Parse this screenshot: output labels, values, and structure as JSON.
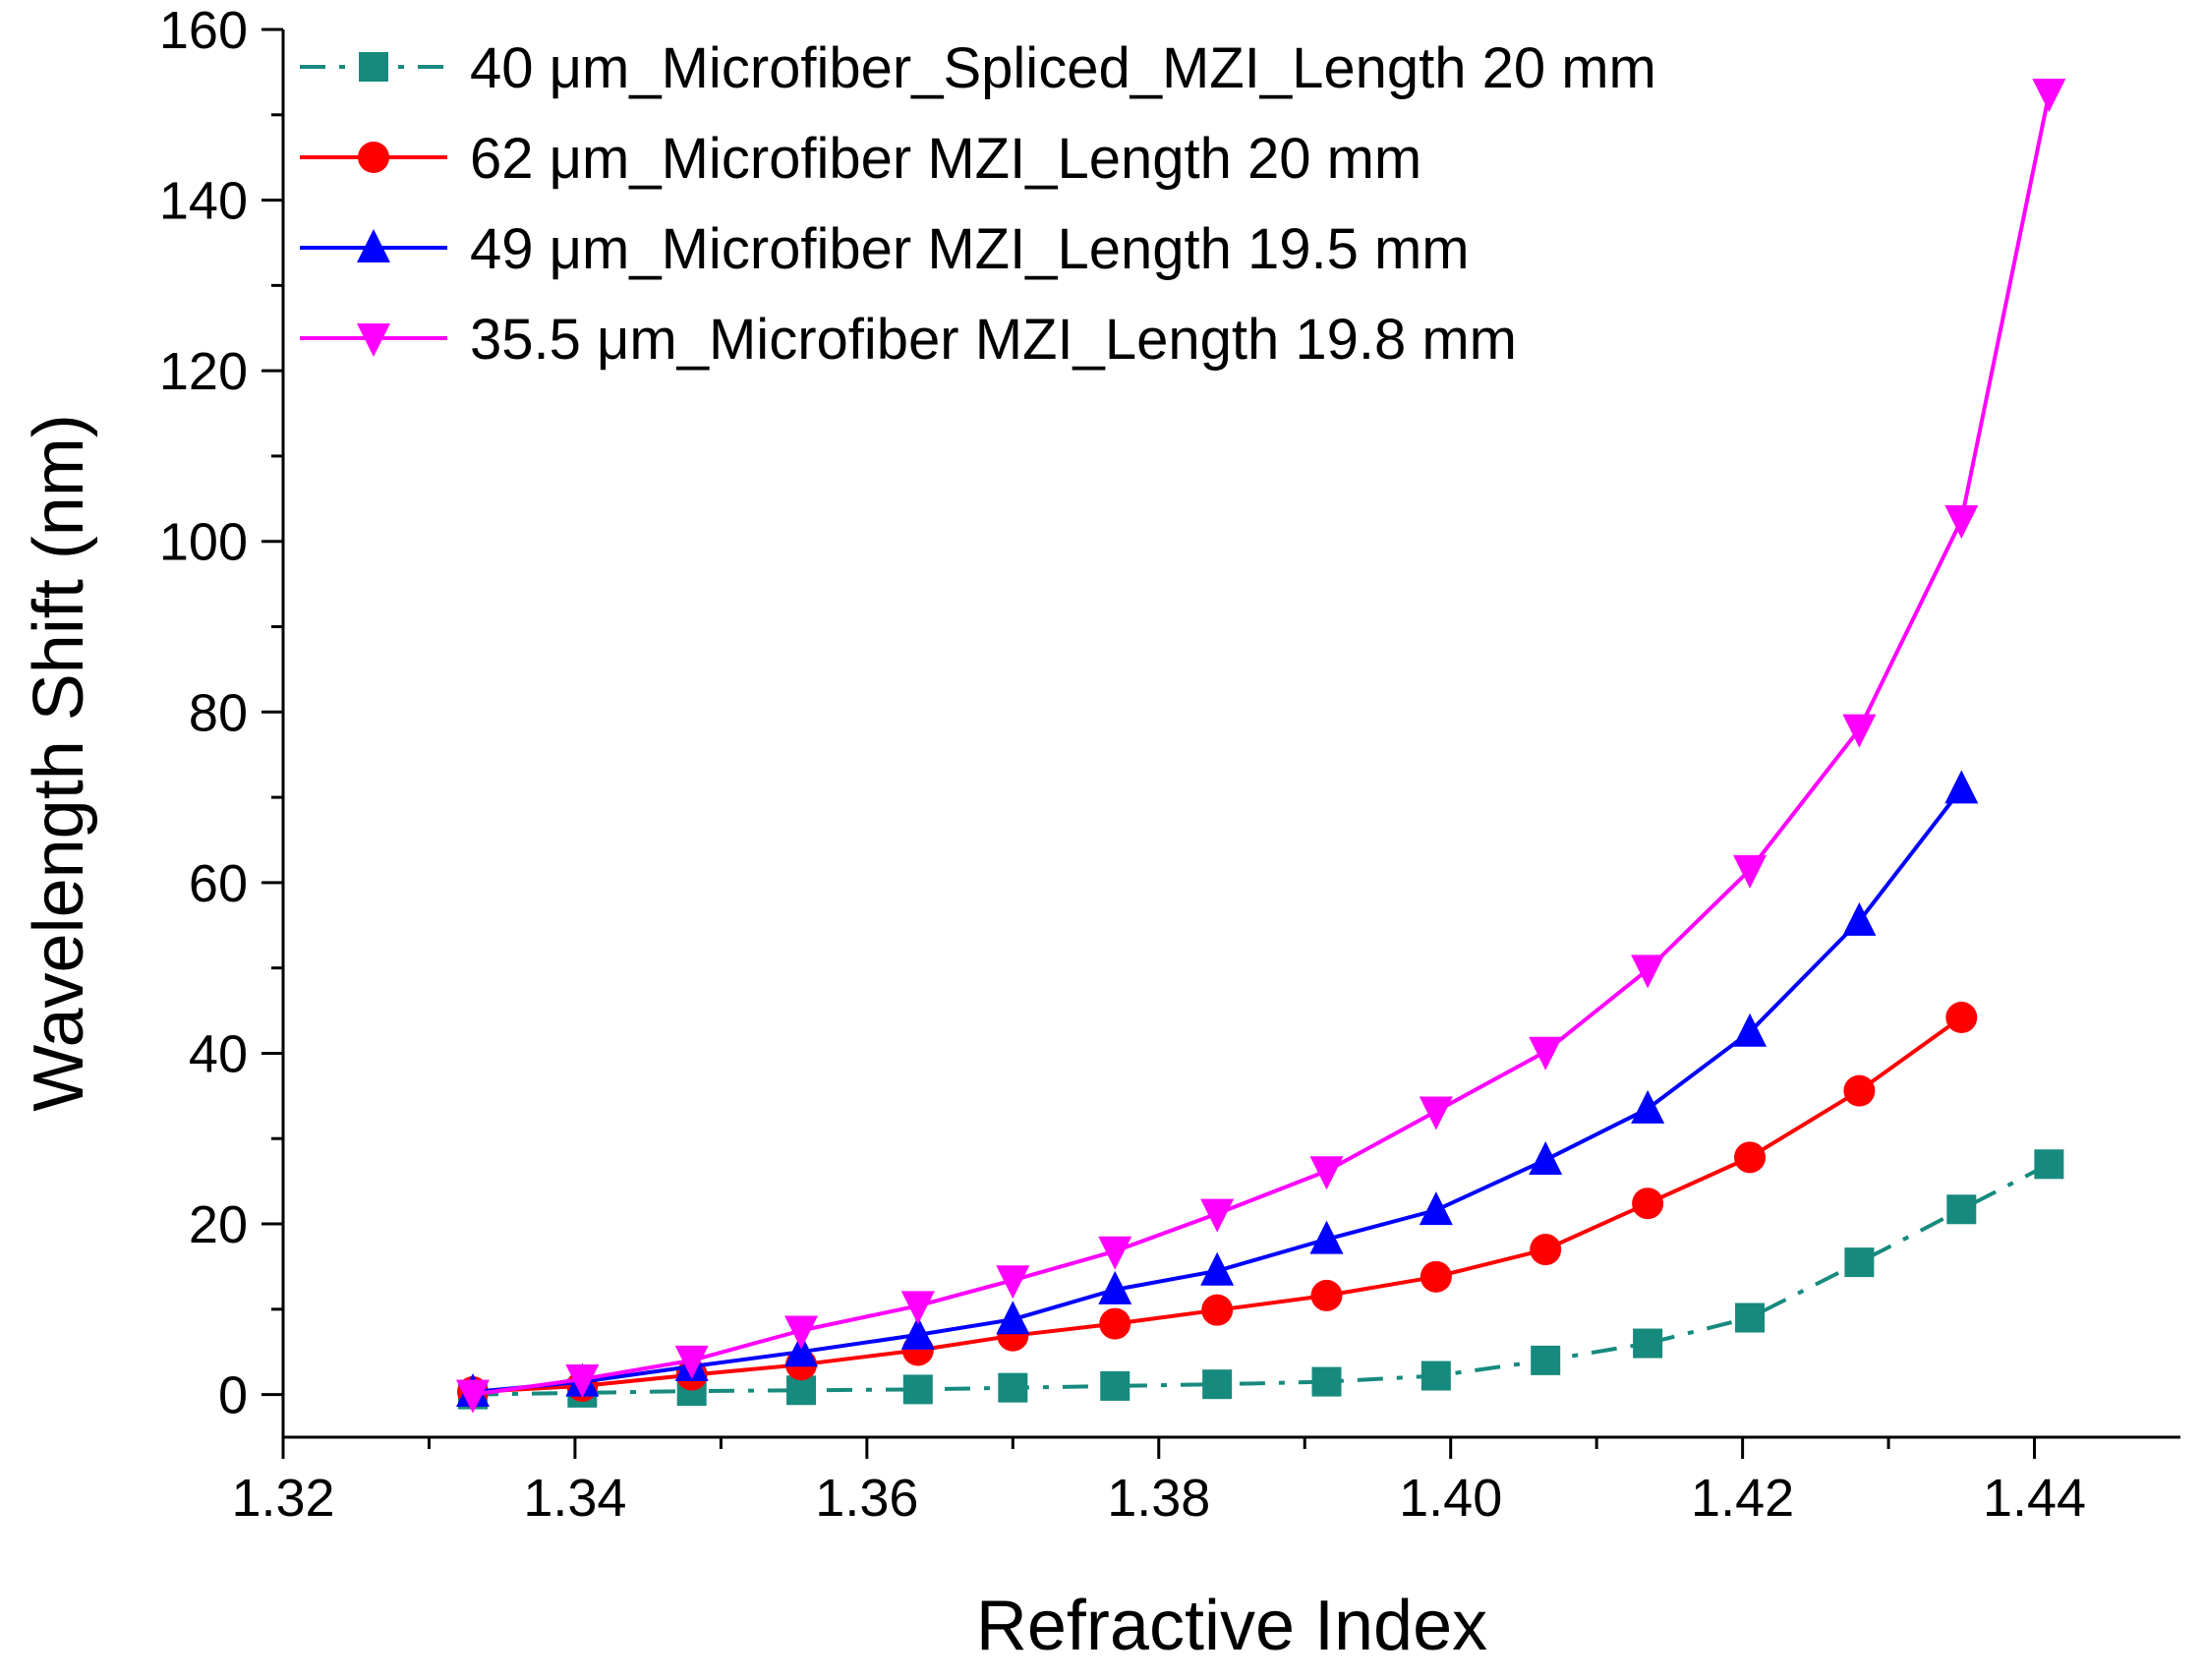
{
  "chart_data": {
    "type": "line",
    "xlabel": "Refractive Index",
    "ylabel": "Wavelength Shift (nm)",
    "xlim": [
      1.32,
      1.45
    ],
    "ylim": [
      -5,
      160
    ],
    "x_ticks": [
      1.32,
      1.34,
      1.36,
      1.38,
      1.4,
      1.42,
      1.44
    ],
    "x_tick_labels": [
      "1.32",
      "1.34",
      "1.36",
      "1.38",
      "1.40",
      "1.42",
      "1.44"
    ],
    "y_ticks": [
      0,
      20,
      40,
      60,
      80,
      100,
      120,
      140,
      160
    ],
    "y_tick_labels": [
      "0",
      "20",
      "40",
      "60",
      "80",
      "100",
      "120",
      "140",
      "160"
    ],
    "grid": false,
    "legend_position": "top-left",
    "series": [
      {
        "name": "40 μm_Microfiber_Spliced_MZI_Length 20 mm",
        "color": "#178a7e",
        "marker": "square",
        "line_style": "dashdot",
        "x": [
          1.333,
          1.3405,
          1.348,
          1.3555,
          1.3635,
          1.37,
          1.377,
          1.384,
          1.3915,
          1.399,
          1.4065,
          1.4135,
          1.4205,
          1.428,
          1.435,
          1.441
        ],
        "y": [
          0,
          0.2,
          0.4,
          0.5,
          0.6,
          0.8,
          1.0,
          1.2,
          1.5,
          2.2,
          4.0,
          6.0,
          9.0,
          15.5,
          21.7,
          27.0
        ]
      },
      {
        "name": "62 μm_Microfiber MZI_Length 20 mm",
        "color": "#ff0000",
        "marker": "circle",
        "line_style": "solid",
        "x": [
          1.333,
          1.3405,
          1.348,
          1.3555,
          1.3635,
          1.37,
          1.377,
          1.384,
          1.3915,
          1.399,
          1.4065,
          1.4135,
          1.4205,
          1.428,
          1.435
        ],
        "y": [
          0.3,
          1.0,
          2.3,
          3.5,
          5.2,
          6.9,
          8.3,
          9.9,
          11.6,
          13.8,
          17.0,
          22.4,
          27.8,
          35.6,
          44.2
        ]
      },
      {
        "name": "49 μm_Microfiber MZI_Length 19.5 mm",
        "color": "#0000ff",
        "marker": "triangle-up",
        "line_style": "solid",
        "x": [
          1.333,
          1.3405,
          1.348,
          1.3555,
          1.3635,
          1.37,
          1.377,
          1.384,
          1.3915,
          1.399,
          1.4065,
          1.4135,
          1.4205,
          1.428,
          1.435
        ],
        "y": [
          0.3,
          1.5,
          3.3,
          5.0,
          7.0,
          8.8,
          12.3,
          14.5,
          18.2,
          21.6,
          27.5,
          33.5,
          42.5,
          55.5,
          71.0
        ]
      },
      {
        "name": "35.5 μm_Microfiber MZI_Length 19.8 mm",
        "color": "#ff00ff",
        "marker": "triangle-down",
        "line_style": "solid",
        "x": [
          1.333,
          1.3405,
          1.348,
          1.3555,
          1.3635,
          1.37,
          1.377,
          1.384,
          1.3915,
          1.399,
          1.4065,
          1.4135,
          1.4205,
          1.428,
          1.435,
          1.441
        ],
        "y": [
          0,
          1.8,
          4.0,
          7.5,
          10.4,
          13.4,
          16.8,
          21.2,
          26.2,
          33.2,
          40.2,
          49.8,
          61.5,
          78.0,
          102.5,
          152.5
        ]
      }
    ]
  }
}
